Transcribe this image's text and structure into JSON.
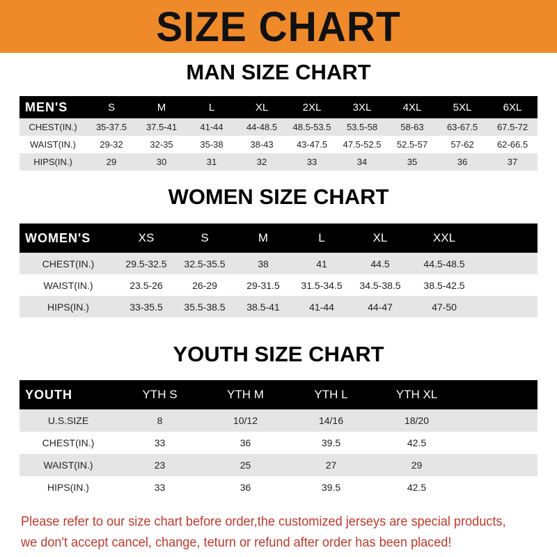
{
  "banner": {
    "title": "SIZE CHART",
    "color": "#ef8a2a"
  },
  "men": {
    "title": "MAN SIZE CHART",
    "header": [
      "MEN'S",
      "S",
      "M",
      "L",
      "XL",
      "2XL",
      "3XL",
      "4XL",
      "5XL",
      "6XL"
    ],
    "rows": [
      [
        "CHEST(IN.)",
        "35-37.5",
        "37.5-41",
        "41-44",
        "44-48.5",
        "48.5-53.5",
        "53.5-58",
        "58-63",
        "63-67.5",
        "67.5-72"
      ],
      [
        "WAIST(IN.)",
        "29-32",
        "32-35",
        "35-38",
        "38-43",
        "43-47.5",
        "47.5-52.5",
        "52.5-57",
        "57-62",
        "62-66.5"
      ],
      [
        "HIPS(IN.)",
        "29",
        "30",
        "31",
        "32",
        "33",
        "34",
        "35",
        "36",
        "37"
      ]
    ]
  },
  "women": {
    "title": "WOMEN SIZE CHART",
    "header": [
      "WOMEN'S",
      "XS",
      "S",
      "M",
      "L",
      "XL",
      "XXL"
    ],
    "rows": [
      [
        "CHEST(IN.)",
        "29.5-32.5",
        "32.5-35.5",
        "38",
        "41",
        "44.5",
        "44.5-48.5"
      ],
      [
        "WAIST(IN.)",
        "23.5-26",
        "26-29",
        "29-31.5",
        "31.5-34.5",
        "34.5-38.5",
        "38.5-42.5"
      ],
      [
        "HIPS(IN.)",
        "33-35.5",
        "35.5-38.5",
        "38.5-41",
        "41-44",
        "44-47",
        "47-50"
      ]
    ]
  },
  "youth": {
    "title": "YOUTH SIZE CHART",
    "header": [
      "YOUTH",
      "YTH S",
      "YTH M",
      "YTH L",
      "YTH XL"
    ],
    "rows": [
      [
        "U.S.SIZE",
        "8",
        "10/12",
        "14/16",
        "18/20"
      ],
      [
        "CHEST(IN.)",
        "33",
        "36",
        "39.5",
        "42.5"
      ],
      [
        "WAIST(IN.)",
        "23",
        "25",
        "27",
        "29"
      ],
      [
        "HIPS(IN.)",
        "33",
        "36",
        "39.5",
        "42.5"
      ]
    ]
  },
  "note": {
    "line1": "Please refer to our size chart before order,the customized jerseys are special products,",
    "line2": "we don't accept cancel, change, teturn or refund after order has been placed!",
    "color": "#c0392b"
  }
}
